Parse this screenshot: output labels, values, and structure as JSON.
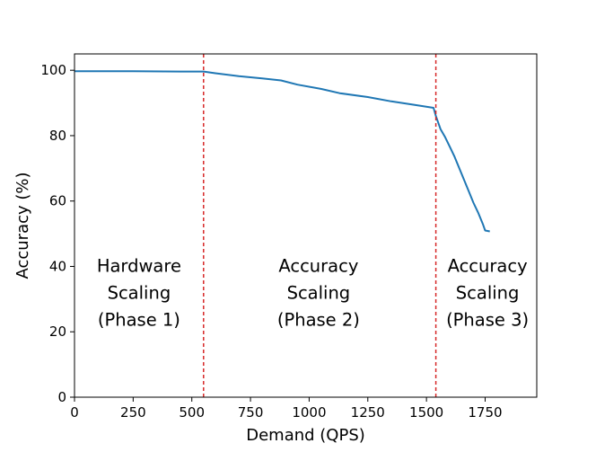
{
  "chart_data": {
    "type": "line",
    "xlabel": "Demand (QPS)",
    "ylabel": "Accuracy (%)",
    "xlim": [
      0,
      1970
    ],
    "ylim": [
      0,
      105
    ],
    "xticks": [
      0,
      250,
      500,
      750,
      1000,
      1250,
      1500,
      1750
    ],
    "yticks": [
      0,
      20,
      40,
      60,
      80,
      100
    ],
    "grid": false,
    "line_color": "#1f77b4",
    "divider_color": "#d62728",
    "dividers": [
      550,
      1540
    ],
    "series": [
      {
        "values": [
          [
            0,
            99.7
          ],
          [
            250,
            99.7
          ],
          [
            450,
            99.6
          ],
          [
            550,
            99.6
          ],
          [
            600,
            99.1
          ],
          [
            700,
            98.2
          ],
          [
            800,
            97.5
          ],
          [
            880,
            96.9
          ],
          [
            950,
            95.6
          ],
          [
            1050,
            94.3
          ],
          [
            1130,
            93.0
          ],
          [
            1250,
            91.8
          ],
          [
            1350,
            90.5
          ],
          [
            1450,
            89.4
          ],
          [
            1530,
            88.5
          ],
          [
            1540,
            86.0
          ],
          [
            1550,
            84.0
          ],
          [
            1560,
            82.0
          ],
          [
            1580,
            79.5
          ],
          [
            1600,
            76.5
          ],
          [
            1620,
            73.5
          ],
          [
            1640,
            70.0
          ],
          [
            1660,
            66.5
          ],
          [
            1680,
            63.0
          ],
          [
            1700,
            59.5
          ],
          [
            1720,
            56.5
          ],
          [
            1740,
            53.0
          ],
          [
            1750,
            51.0
          ],
          [
            1770,
            50.7
          ]
        ]
      }
    ],
    "annotations": [
      {
        "lines": [
          "Hardware",
          "Scaling",
          "(Phase 1)"
        ],
        "x": 275,
        "y": 32
      },
      {
        "lines": [
          "Accuracy",
          "Scaling",
          "(Phase 2)"
        ],
        "x": 1040,
        "y": 32
      },
      {
        "lines": [
          "Accuracy",
          "Scaling",
          "(Phase 3)"
        ],
        "x": 1760,
        "y": 32
      }
    ]
  }
}
